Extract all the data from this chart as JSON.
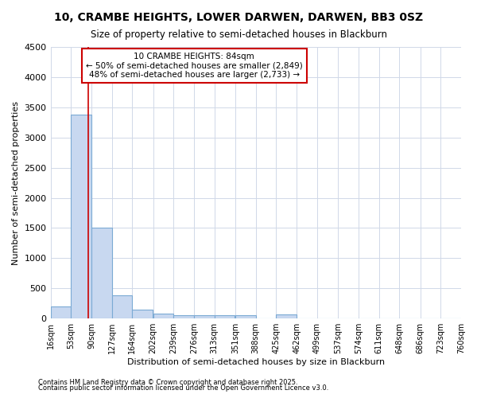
{
  "title": "10, CRAMBE HEIGHTS, LOWER DARWEN, DARWEN, BB3 0SZ",
  "subtitle": "Size of property relative to semi-detached houses in Blackburn",
  "xlabel": "Distribution of semi-detached houses by size in Blackburn",
  "ylabel": "Number of semi-detached properties",
  "footnote1": "Contains HM Land Registry data © Crown copyright and database right 2025.",
  "footnote2": "Contains public sector information licensed under the Open Government Licence v3.0.",
  "annotation_title": "10 CRAMBE HEIGHTS: 84sqm",
  "annotation_line1": "← 50% of semi-detached houses are smaller (2,849)",
  "annotation_line2": "48% of semi-detached houses are larger (2,733) →",
  "property_size": 84,
  "bin_edges": [
    16,
    53,
    90,
    127,
    164,
    202,
    239,
    276,
    313,
    351,
    388,
    425,
    462,
    499,
    537,
    574,
    611,
    648,
    686,
    723,
    760
  ],
  "bar_heights": [
    200,
    3380,
    1500,
    390,
    150,
    80,
    60,
    50,
    50,
    60,
    0,
    65,
    0,
    0,
    0,
    0,
    0,
    0,
    0,
    0
  ],
  "bar_color": "#c8d8f0",
  "bar_edge_color": "#7baad4",
  "red_line_color": "#cc0000",
  "grid_color": "#d0d8e8",
  "background_color": "#ffffff",
  "ylim": [
    0,
    4500
  ],
  "yticks": [
    0,
    500,
    1000,
    1500,
    2000,
    2500,
    3000,
    3500,
    4000,
    4500
  ]
}
